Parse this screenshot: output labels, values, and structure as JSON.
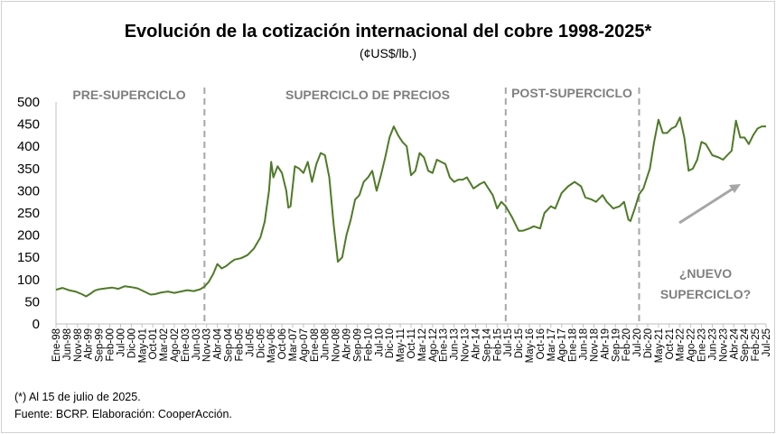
{
  "chart_data": {
    "type": "line",
    "title": "Evolución de la cotización internacional del cobre 1998-2025*",
    "subtitle": "(¢US$/lb.)",
    "ylim": [
      0,
      500
    ],
    "yticks": [
      0,
      50,
      100,
      150,
      200,
      250,
      300,
      350,
      400,
      450,
      500
    ],
    "grid": false,
    "x_tick_labels": [
      "Ene-98",
      "Jun-98",
      "Nov-98",
      "Abr-99",
      "Sep-99",
      "Feb-00",
      "Jul-00",
      "Dic-00",
      "May-01",
      "Oct-01",
      "Mar-02",
      "Ago-02",
      "Ene-03",
      "Jun-03",
      "Nov-03",
      "Abr-04",
      "Sep-04",
      "Feb-05",
      "Jul-05",
      "Dic-05",
      "May-06",
      "Oct-06",
      "Mar-07",
      "Ago-07",
      "Ene-08",
      "Jun-08",
      "Nov-08",
      "Abr-09",
      "Sep-09",
      "Feb-10",
      "Jul-10",
      "Dic-10",
      "May-11",
      "Oct-11",
      "Mar-12",
      "Ago-12",
      "Ene-13",
      "Jun-13",
      "Nov-13",
      "Abr-14",
      "Sep-14",
      "Feb-15",
      "Jul-15",
      "Dic-15",
      "May-16",
      "Oct-16",
      "Mar-17",
      "Ago-17",
      "Ene-18",
      "Jun-18",
      "Nov-18",
      "Abr-19",
      "Sep-19",
      "Feb-20",
      "Jul-20",
      "Dic-20",
      "May-21",
      "Oct-21",
      "Mar-22",
      "Ago-22",
      "Ene-23",
      "Jun-23",
      "Nov-23",
      "Abr-24",
      "Sep-24",
      "Feb-25",
      "Jul-25"
    ],
    "series": [
      {
        "color": "#4f7a28",
        "points": [
          [
            "1998-01",
            77
          ],
          [
            "1998-04",
            81
          ],
          [
            "1998-07",
            76
          ],
          [
            "1998-10",
            73
          ],
          [
            "1999-01",
            67
          ],
          [
            "1999-03",
            62
          ],
          [
            "1999-05",
            68
          ],
          [
            "1999-07",
            75
          ],
          [
            "1999-09",
            78
          ],
          [
            "1999-12",
            80
          ],
          [
            "2000-03",
            82
          ],
          [
            "2000-06",
            79
          ],
          [
            "2000-09",
            85
          ],
          [
            "2000-12",
            83
          ],
          [
            "2001-03",
            80
          ],
          [
            "2001-06",
            73
          ],
          [
            "2001-09",
            66
          ],
          [
            "2001-11",
            67
          ],
          [
            "2002-02",
            71
          ],
          [
            "2002-05",
            73
          ],
          [
            "2002-08",
            70
          ],
          [
            "2002-11",
            73
          ],
          [
            "2003-02",
            76
          ],
          [
            "2003-05",
            74
          ],
          [
            "2003-08",
            78
          ],
          [
            "2003-10",
            84
          ],
          [
            "2003-12",
            95
          ],
          [
            "2004-02",
            112
          ],
          [
            "2004-04",
            135
          ],
          [
            "2004-06",
            125
          ],
          [
            "2004-08",
            130
          ],
          [
            "2004-10",
            138
          ],
          [
            "2004-12",
            145
          ],
          [
            "2005-03",
            148
          ],
          [
            "2005-06",
            155
          ],
          [
            "2005-09",
            170
          ],
          [
            "2005-12",
            195
          ],
          [
            "2006-02",
            230
          ],
          [
            "2006-04",
            300
          ],
          [
            "2006-05",
            365
          ],
          [
            "2006-06",
            330
          ],
          [
            "2006-08",
            355
          ],
          [
            "2006-10",
            340
          ],
          [
            "2006-12",
            300
          ],
          [
            "2007-01",
            262
          ],
          [
            "2007-02",
            265
          ],
          [
            "2007-04",
            355
          ],
          [
            "2007-06",
            350
          ],
          [
            "2007-08",
            340
          ],
          [
            "2007-10",
            365
          ],
          [
            "2007-12",
            320
          ],
          [
            "2008-02",
            360
          ],
          [
            "2008-04",
            385
          ],
          [
            "2008-06",
            380
          ],
          [
            "2008-08",
            330
          ],
          [
            "2008-10",
            225
          ],
          [
            "2008-12",
            140
          ],
          [
            "2009-02",
            150
          ],
          [
            "2009-04",
            200
          ],
          [
            "2009-06",
            235
          ],
          [
            "2009-08",
            280
          ],
          [
            "2009-10",
            290
          ],
          [
            "2009-12",
            320
          ],
          [
            "2010-02",
            330
          ],
          [
            "2010-04",
            345
          ],
          [
            "2010-06",
            300
          ],
          [
            "2010-08",
            335
          ],
          [
            "2010-10",
            375
          ],
          [
            "2010-12",
            420
          ],
          [
            "2011-02",
            445
          ],
          [
            "2011-04",
            425
          ],
          [
            "2011-06",
            410
          ],
          [
            "2011-08",
            400
          ],
          [
            "2011-10",
            335
          ],
          [
            "2011-12",
            345
          ],
          [
            "2012-02",
            385
          ],
          [
            "2012-04",
            375
          ],
          [
            "2012-06",
            345
          ],
          [
            "2012-08",
            340
          ],
          [
            "2012-10",
            370
          ],
          [
            "2012-12",
            365
          ],
          [
            "2013-02",
            360
          ],
          [
            "2013-04",
            330
          ],
          [
            "2013-06",
            320
          ],
          [
            "2013-08",
            325
          ],
          [
            "2013-10",
            325
          ],
          [
            "2013-12",
            330
          ],
          [
            "2014-03",
            305
          ],
          [
            "2014-06",
            315
          ],
          [
            "2014-08",
            320
          ],
          [
            "2014-10",
            305
          ],
          [
            "2014-12",
            290
          ],
          [
            "2015-02",
            260
          ],
          [
            "2015-04",
            275
          ],
          [
            "2015-06",
            265
          ],
          [
            "2015-09",
            240
          ],
          [
            "2015-12",
            210
          ],
          [
            "2016-02",
            210
          ],
          [
            "2016-05",
            215
          ],
          [
            "2016-07",
            220
          ],
          [
            "2016-10",
            215
          ],
          [
            "2016-12",
            250
          ],
          [
            "2017-03",
            265
          ],
          [
            "2017-05",
            260
          ],
          [
            "2017-08",
            295
          ],
          [
            "2017-11",
            310
          ],
          [
            "2018-02",
            320
          ],
          [
            "2018-05",
            310
          ],
          [
            "2018-07",
            285
          ],
          [
            "2018-10",
            280
          ],
          [
            "2018-12",
            275
          ],
          [
            "2019-03",
            290
          ],
          [
            "2019-05",
            275
          ],
          [
            "2019-08",
            260
          ],
          [
            "2019-11",
            265
          ],
          [
            "2020-01",
            275
          ],
          [
            "2020-03",
            235
          ],
          [
            "2020-04",
            232
          ],
          [
            "2020-06",
            260
          ],
          [
            "2020-08",
            292
          ],
          [
            "2020-10",
            305
          ],
          [
            "2021-01",
            350
          ],
          [
            "2021-03",
            410
          ],
          [
            "2021-05",
            460
          ],
          [
            "2021-07",
            430
          ],
          [
            "2021-09",
            430
          ],
          [
            "2021-11",
            440
          ],
          [
            "2022-01",
            445
          ],
          [
            "2022-03",
            465
          ],
          [
            "2022-05",
            420
          ],
          [
            "2022-07",
            345
          ],
          [
            "2022-09",
            350
          ],
          [
            "2022-11",
            370
          ],
          [
            "2023-01",
            410
          ],
          [
            "2023-03",
            405
          ],
          [
            "2023-06",
            380
          ],
          [
            "2023-09",
            375
          ],
          [
            "2023-11",
            370
          ],
          [
            "2024-01",
            380
          ],
          [
            "2024-03",
            390
          ],
          [
            "2024-05",
            458
          ],
          [
            "2024-07",
            420
          ],
          [
            "2024-09",
            420
          ],
          [
            "2024-11",
            405
          ],
          [
            "2025-01",
            425
          ],
          [
            "2025-03",
            440
          ],
          [
            "2025-05",
            445
          ],
          [
            "2025-07",
            445
          ]
        ]
      }
    ],
    "period_labels": [
      "PRE-SUPERCICLO",
      "SUPERCICLO DE PRECIOS",
      "POST-SUPERCICLO"
    ],
    "period_dividers": [
      "2003-10",
      "2015-06",
      "2020-08"
    ],
    "annotation": {
      "line1": "¿NUEVO",
      "line2": "SUPERCICLO?"
    },
    "line_color": "#4f7a28",
    "divider_color": "#a6a6a6",
    "period_label_color": "#7f7f7f",
    "arrow_color": "#a6a6a6"
  },
  "footnote": "(*) Al 15  de julio de 2025.",
  "source": "Fuente: BCRP. Elaboración: CooperAcción."
}
